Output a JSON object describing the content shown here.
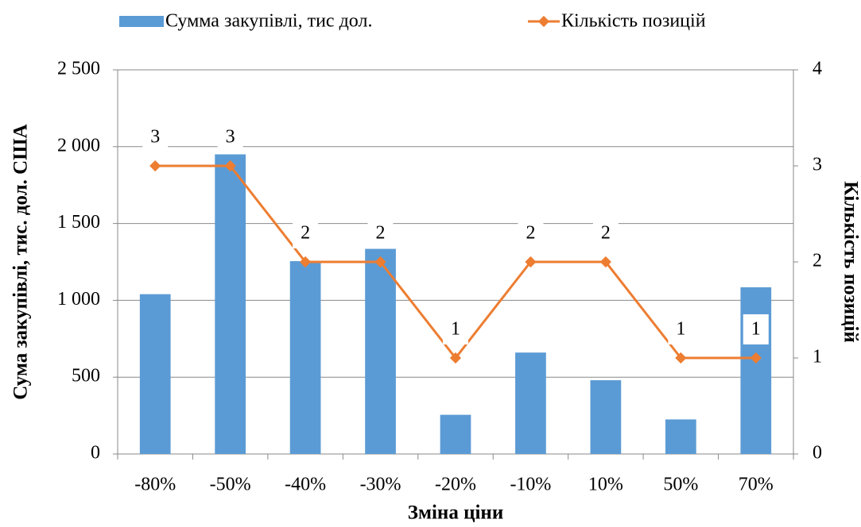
{
  "chart_data": {
    "type": "bar",
    "categories": [
      "-80%",
      "-50%",
      "-40%",
      "-30%",
      "-20%",
      "-10%",
      "10%",
      "50%",
      "70%"
    ],
    "series": [
      {
        "name": "Сумма закупівлі, тис дол.",
        "color": "#5b9bd5",
        "values": [
          1040,
          1950,
          1255,
          1335,
          255,
          660,
          480,
          225,
          1085
        ]
      },
      {
        "name": "Кількість позицій",
        "color": "#ed7d31",
        "axis": "y2",
        "values": [
          3,
          3,
          2,
          2,
          1,
          2,
          2,
          1,
          1
        ]
      }
    ],
    "ylim": [
      0,
      2500
    ],
    "yticks": [
      0,
      500,
      {
        "value": 1000,
        "label": "1 000"
      },
      {
        "value": 1500,
        "label": "1 500"
      },
      {
        "value": 2000,
        "label": "2 000"
      },
      {
        "value": 2500,
        "label": "2 500"
      }
    ],
    "y2lim": [
      0,
      4
    ],
    "y2ticks": [
      0,
      1,
      2,
      3,
      4
    ],
    "xlabel": "Зміна ціни",
    "ylabel": "Сума закупівлі, тис. дол. США",
    "y2label": "Кількість позицій",
    "grid": true,
    "legend": "top"
  }
}
